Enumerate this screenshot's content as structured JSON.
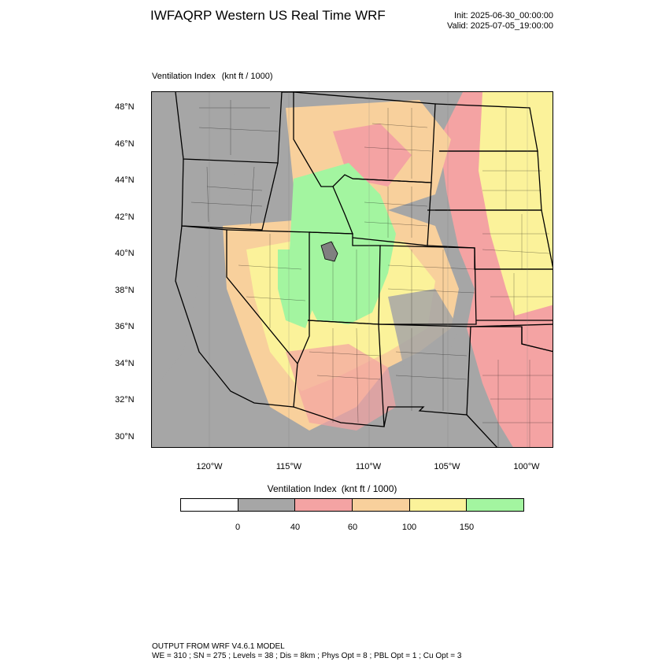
{
  "header": {
    "title": "IWFAQRP Western US Real Time WRF",
    "init": "Init: 2025-06-30_00:00:00",
    "valid": "Valid: 2025-07-05_19:00:00"
  },
  "map": {
    "field_name": "Ventilation Index",
    "field_units": "(knt ft / 1000)",
    "lat_labels": [
      "48°N",
      "46°N",
      "44°N",
      "42°N",
      "40°N",
      "38°N",
      "36°N",
      "34°N",
      "32°N",
      "30°N"
    ],
    "lon_labels": [
      "120°W",
      "115°W",
      "110°W",
      "105°W",
      "100°W"
    ],
    "lat_range": [
      29.4,
      48.9
    ],
    "lon_range": [
      -123.7,
      -98.2
    ]
  },
  "legend": {
    "title": "Ventilation Index",
    "units": "(knt ft / 1000)",
    "colors": [
      "#ffffff",
      "#a6a6a6",
      "#f4a3a3",
      "#f8d09c",
      "#fbf29a",
      "#a3f5a0"
    ],
    "tick_labels": [
      "0",
      "40",
      "60",
      "100",
      "150"
    ]
  },
  "footer": {
    "line1": "OUTPUT FROM WRF V4.6.1 MODEL",
    "line2": "WE = 310 ; SN = 275 ; Levels = 38 ; Dis = 8km ; Phys Opt = 8 ; PBL Opt = 1 ; Cu Opt = 3"
  }
}
